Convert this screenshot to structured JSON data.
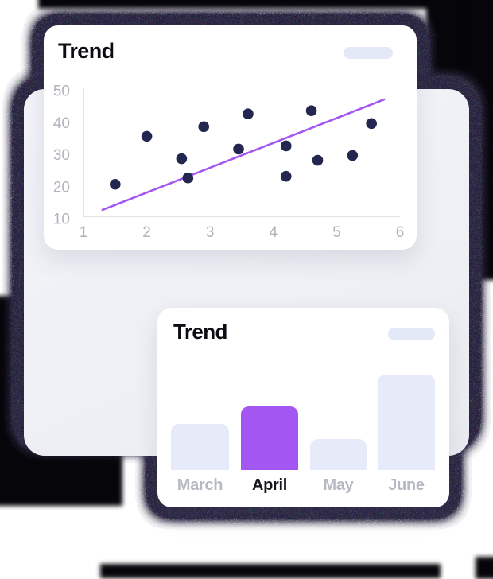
{
  "cards": {
    "scatter": {
      "title": "Trend",
      "badge": "skeleton-pill"
    },
    "bar": {
      "title": "Trend",
      "badge": "skeleton-pill"
    }
  },
  "theme": {
    "accent_purple": "#a356f2",
    "point_navy": "#232750",
    "card_bg": "#ffffff",
    "panel_bg": "#eef0f5",
    "badge_bg": "#e4e9f8",
    "shadow_ink": "#231d3c",
    "muted_label": "#b7bac3",
    "title_color": "#0c0d13"
  },
  "chart_data": [
    {
      "type": "scatter",
      "title": "Trend",
      "points": [
        [
          1.5,
          20
        ],
        [
          2,
          35
        ],
        [
          2.55,
          28
        ],
        [
          2.65,
          22
        ],
        [
          2.9,
          38
        ],
        [
          3.45,
          31
        ],
        [
          3.6,
          42
        ],
        [
          4.2,
          22.5
        ],
        [
          4.2,
          32
        ],
        [
          4.6,
          43
        ],
        [
          4.7,
          27.5
        ],
        [
          5.25,
          29
        ],
        [
          5.55,
          39
        ]
      ],
      "trend_line": {
        "x1": 1.3,
        "y1": 12,
        "x2": 5.75,
        "y2": 46.5
      },
      "xlim": [
        1,
        6
      ],
      "ylim": [
        10,
        50
      ],
      "x_ticks": [
        "1",
        "2",
        "3",
        "4",
        "5",
        "6"
      ],
      "y_ticks": [
        "10",
        "20",
        "30",
        "40",
        "50"
      ],
      "grid": false,
      "legend": "none",
      "point_color": "#232750",
      "line_color": "#a356f2",
      "axis_color": "#d8d9de",
      "tick_label_color": "#b2b4bd"
    },
    {
      "type": "bar",
      "title": "Trend",
      "categories": [
        "March",
        "April",
        "May",
        "June"
      ],
      "values": [
        58,
        80,
        39,
        120
      ],
      "ylim": [
        0,
        130
      ],
      "highlight_index": 1,
      "bar_color": "#e6eaf9",
      "highlight_color": "#a356f2",
      "label_color": "#b7bac3",
      "highlight_label_color": "#15161c",
      "legend": "none"
    }
  ]
}
